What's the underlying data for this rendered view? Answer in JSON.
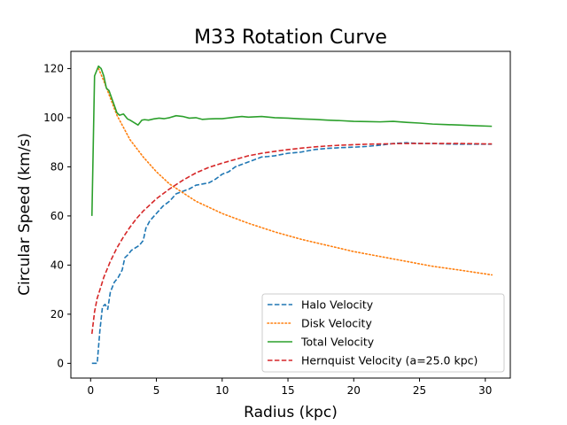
{
  "chart_data": {
    "type": "line",
    "title": "M33 Rotation Curve",
    "xlabel": "Radius (kpc)",
    "ylabel": "Circular Speed (km/s)",
    "xlim": [
      -1.5,
      31.9
    ],
    "ylim": [
      -6,
      127
    ],
    "xticks": [
      0,
      5,
      10,
      15,
      20,
      25,
      30
    ],
    "yticks": [
      0,
      20,
      40,
      60,
      80,
      100,
      120
    ],
    "grid": false,
    "legend_position": "bottom-right",
    "series": [
      {
        "name": "Halo Velocity",
        "color": "#1f77b4",
        "dash": "dashed",
        "x": [
          0.1,
          0.5,
          0.7,
          0.9,
          1.1,
          1.3,
          1.5,
          1.8,
          2.1,
          2.4,
          2.6,
          2.8,
          3.1,
          3.4,
          3.7,
          4.0,
          4.2,
          4.5,
          5.0,
          5.5,
          6.0,
          6.5,
          7.0,
          7.5,
          8.0,
          8.5,
          9.0,
          9.5,
          10.0,
          10.5,
          11.0,
          11.5,
          12.0,
          12.5,
          13.0,
          13.5,
          14.0,
          15.0,
          16.0,
          17.0,
          18.0,
          19.0,
          20.0,
          21.0,
          22.0,
          23.0,
          24.0,
          25.0,
          26.0,
          27.0,
          28.0,
          29.0,
          30.5
        ],
        "y": [
          0,
          0,
          13,
          23,
          24,
          22,
          29,
          33,
          35,
          38,
          43,
          44,
          46,
          47,
          48,
          50,
          55,
          58,
          61,
          64,
          66,
          69,
          70,
          71,
          72.5,
          73,
          73.5,
          75,
          77,
          78,
          80,
          81,
          82,
          83,
          84,
          84.2,
          84.5,
          85.5,
          86,
          87,
          87.5,
          87.8,
          88,
          88.3,
          88.8,
          89.5,
          89.8,
          89.5,
          89.5,
          89.3,
          89.2,
          89.2,
          89.2
        ]
      },
      {
        "name": "Disk Velocity",
        "color": "#ff7f0e",
        "dash": "dotted",
        "x": [
          0.6,
          1.0,
          1.5,
          2.0,
          2.5,
          3.0,
          4.0,
          5.0,
          6.0,
          7.0,
          8.0,
          10.0,
          12.0,
          14.0,
          16.0,
          18.0,
          20.0,
          22.0,
          24.0,
          26.0,
          28.0,
          30.5
        ],
        "y": [
          120,
          115,
          108,
          101,
          96,
          91,
          84,
          78,
          73,
          69.5,
          66,
          61,
          57,
          53.5,
          50.5,
          48,
          45.5,
          43.5,
          41.5,
          39.5,
          38,
          36
        ]
      },
      {
        "name": "Total Velocity",
        "color": "#2ca02c",
        "dash": "solid",
        "x": [
          0.1,
          0.3,
          0.6,
          0.8,
          1.0,
          1.2,
          1.4,
          1.6,
          1.8,
          2.0,
          2.2,
          2.5,
          2.8,
          3.0,
          3.3,
          3.6,
          3.9,
          4.1,
          4.4,
          4.8,
          5.2,
          5.6,
          6.0,
          6.5,
          7.0,
          7.5,
          8.0,
          8.5,
          9.0,
          9.5,
          10.0,
          11.0,
          11.5,
          12.0,
          13.0,
          14.0,
          15.0,
          16.0,
          17.0,
          18.0,
          19.0,
          20.0,
          21.0,
          22.0,
          23.0,
          24.0,
          25.0,
          26.0,
          27.0,
          28.0,
          29.0,
          30.5
        ],
        "y": [
          60,
          117,
          121,
          120,
          117,
          112,
          111,
          108,
          105,
          102,
          101,
          101.5,
          99.5,
          99,
          98,
          97,
          99,
          99.2,
          99,
          99.5,
          99.8,
          99.6,
          100,
          100.8,
          100.5,
          99.8,
          100,
          99.3,
          99.5,
          99.6,
          99.6,
          100.2,
          100.5,
          100.2,
          100.5,
          100,
          99.8,
          99.5,
          99.3,
          99.0,
          98.8,
          98.5,
          98.4,
          98.3,
          98.5,
          98.1,
          97.8,
          97.4,
          97.2,
          97.0,
          96.8,
          96.5
        ]
      },
      {
        "name": "Hernquist Velocity (a=25.0 kpc)",
        "color": "#d62728",
        "dash": "dashed",
        "x": [
          0.1,
          0.3,
          0.5,
          0.8,
          1.0,
          1.5,
          2.0,
          2.5,
          3.0,
          3.5,
          4.0,
          5.0,
          6.0,
          7.0,
          8.0,
          9.0,
          10.0,
          11.0,
          12.0,
          13.0,
          14.0,
          15.0,
          16.0,
          17.0,
          18.0,
          19.0,
          20.0,
          21.0,
          22.0,
          23.0,
          24.0,
          25.0,
          26.0,
          27.0,
          28.0,
          29.0,
          30.5
        ],
        "y": [
          12,
          21,
          26.5,
          31.5,
          35,
          41.5,
          47,
          51.5,
          55.5,
          59,
          62,
          67,
          71,
          74.5,
          77.5,
          79.8,
          81.5,
          83,
          84.5,
          85.5,
          86.3,
          87,
          87.6,
          88.1,
          88.5,
          88.8,
          89,
          89.2,
          89.3,
          89.4,
          89.5,
          89.5,
          89.5,
          89.5,
          89.5,
          89.4,
          89.3
        ]
      }
    ]
  }
}
